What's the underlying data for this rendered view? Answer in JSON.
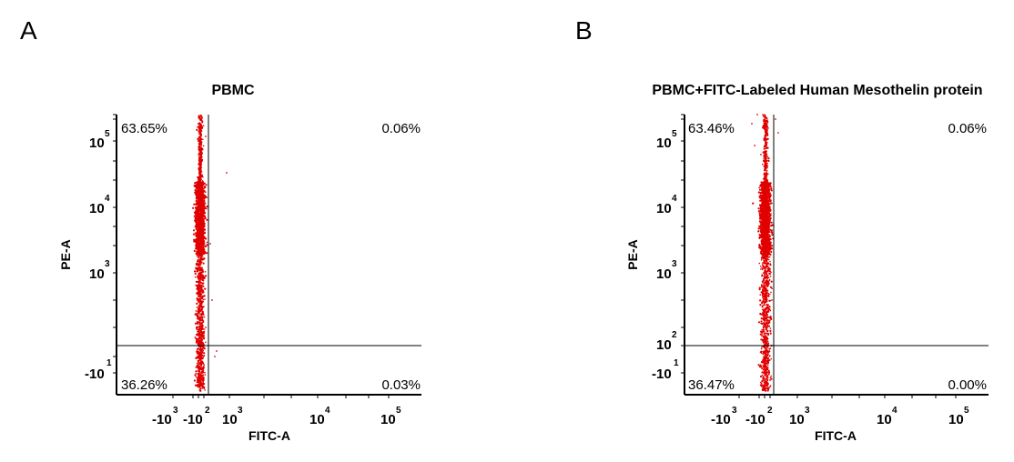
{
  "panels": [
    {
      "letter": "A",
      "title": "PBMC",
      "xlabel": "FITC-A",
      "ylabel": "PE-A",
      "quadrants": {
        "UL": "63.65%",
        "UR": "0.06%",
        "LL": "36.26%",
        "LR": "0.03%"
      },
      "xticks": [
        {
          "base": "-10",
          "exp": "3"
        },
        {
          "base": "-10",
          "exp": "2"
        },
        {
          "base": "10",
          "exp": "3"
        },
        {
          "base": "10",
          "exp": "4"
        },
        {
          "base": "10",
          "exp": "5"
        }
      ],
      "yticks": [
        {
          "base": "10",
          "exp": "5"
        },
        {
          "base": "10",
          "exp": "4"
        },
        {
          "base": "10",
          "exp": "3"
        },
        {
          "base": "-10",
          "exp": "1"
        }
      ]
    },
    {
      "letter": "B",
      "title": "PBMC+FITC-Labeled Human Mesothelin protein",
      "xlabel": "FITC-A",
      "ylabel": "PE-A",
      "quadrants": {
        "UL": "63.46%",
        "UR": "0.06%",
        "LL": "36.47%",
        "LR": "0.00%"
      },
      "xticks": [
        {
          "base": "-10",
          "exp": "3"
        },
        {
          "base": "-10",
          "exp": "2"
        },
        {
          "base": "10",
          "exp": "3"
        },
        {
          "base": "10",
          "exp": "4"
        },
        {
          "base": "10",
          "exp": "5"
        }
      ],
      "yticks": [
        {
          "base": "10",
          "exp": "5"
        },
        {
          "base": "10",
          "exp": "4"
        },
        {
          "base": "10",
          "exp": "3"
        },
        {
          "base": "10",
          "exp": "2"
        },
        {
          "base": "-10",
          "exp": "1"
        }
      ]
    }
  ],
  "chart_data": [
    {
      "type": "scatter",
      "title": "PBMC",
      "xlabel": "FITC-A",
      "ylabel": "PE-A",
      "xscale": "biexponential",
      "yscale": "biexponential",
      "grid": false,
      "dot_color": "#e00000",
      "quadrant_percentages": {
        "upper_left": 63.65,
        "upper_right": 0.06,
        "lower_left": 36.26,
        "lower_right": 0.03
      },
      "x_tick_labels": [
        "-10^3",
        "-10^2",
        "10^3",
        "10^4",
        "10^5"
      ],
      "y_tick_labels": [
        "10^5",
        "10^4",
        "10^3",
        "-10^1"
      ]
    },
    {
      "type": "scatter",
      "title": "PBMC+FITC-Labeled Human Mesothelin protein",
      "xlabel": "FITC-A",
      "ylabel": "PE-A",
      "xscale": "biexponential",
      "yscale": "biexponential",
      "grid": false,
      "dot_color": "#e00000",
      "quadrant_percentages": {
        "upper_left": 63.46,
        "upper_right": 0.06,
        "lower_left": 36.47,
        "lower_right": 0.0
      },
      "x_tick_labels": [
        "-10^3",
        "-10^2",
        "10^3",
        "10^4",
        "10^5"
      ],
      "y_tick_labels": [
        "10^5",
        "10^4",
        "10^3",
        "10^2",
        "-10^1"
      ]
    }
  ]
}
